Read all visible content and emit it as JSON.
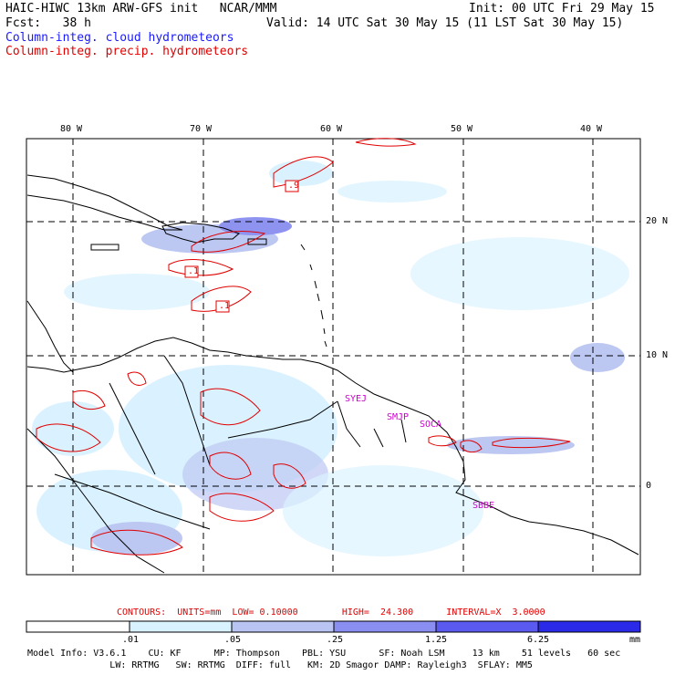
{
  "header": {
    "title": "HAIC-HIWC 13km ARW-GFS init   NCAR/MMM",
    "init": "Init: 00 UTC Fri 29 May 15",
    "fcst": "Fcst:   38 h",
    "valid": "Valid: 14 UTC Sat 30 May 15 (11 LST Sat 30 May 15)",
    "field1": "Column-integ. cloud hydrometeors",
    "field2": "Column-integ. precip. hydrometeors"
  },
  "map": {
    "lon_labels": [
      "80 W",
      "70 W",
      "60 W",
      "50 W",
      "40 W"
    ],
    "lat_labels": [
      "20 N",
      "10 N",
      "0"
    ],
    "stations": [
      "SYEJ",
      "SMJP",
      "SOCA",
      "SBBE"
    ],
    "contour_values": [
      ".9",
      ".1",
      ".1"
    ],
    "colors": {
      "ocean": "#ffffff",
      "coast": "#000000",
      "cloud_light": "#d9f2ff",
      "cloud_mid": "#b9c4f2",
      "cloud_dark": "#8a8ef0",
      "precip_contour": "#e00000",
      "station": "#cc00cc"
    }
  },
  "contours_line": {
    "text": "CONTOURS:  UNITS=mm  LOW= 0.10000        HIGH=  24.300      INTERVAL=X  3.0000"
  },
  "colorbar": {
    "ticks": [
      ".01",
      ".05",
      ".25",
      "1.25",
      "6.25"
    ],
    "unit": "mm",
    "colors": [
      "#ffffff",
      "#d9f2ff",
      "#b9c4f2",
      "#8a8ef0",
      "#5a5af0",
      "#2a2ae8",
      "#0000e0"
    ]
  },
  "footer": {
    "line1": "Model Info: V3.6.1    CU: KF      MP: Thompson    PBL: YSU      SF: Noah LSM     13 km    51 levels   60 sec",
    "line2": "               LW: RRTMG   SW: RRTMG  DIFF: full   KM: 2D Smagor DAMP: Rayleigh3  SFLAY: MM5"
  }
}
